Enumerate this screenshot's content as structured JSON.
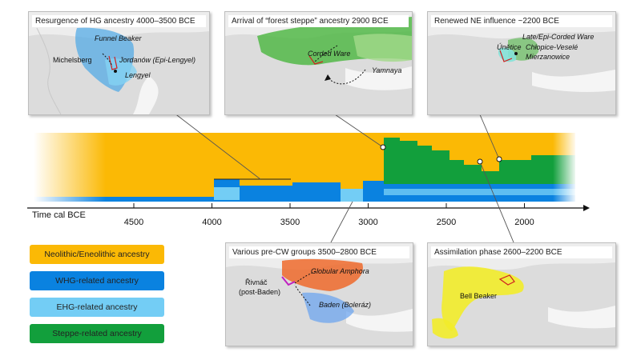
{
  "colors": {
    "neolithic": "#fbb905",
    "whg": "#0a82e0",
    "ehg": "#73cdf5",
    "steppe": "#129f3c"
  },
  "timeline": {
    "axis_label": "Time cal BCE",
    "ticks": [
      "4500",
      "4000",
      "3500",
      "3000",
      "2500",
      "2000"
    ]
  },
  "legend": [
    {
      "label": "Neolithic/Eneolithic ancestry",
      "color": "#fbb905"
    },
    {
      "label": "WHG-related ancestry",
      "color": "#0a82e0"
    },
    {
      "label": "EHG-related ancestry",
      "color": "#73cdf5"
    },
    {
      "label": "Steppe-related ancestry",
      "color": "#129f3c"
    }
  ],
  "panels": {
    "hg": {
      "title": "Resurgence of HG ancestry 4000–3500 BCE",
      "labels": [
        "Funnel Beaker",
        "Michelsberg",
        "Jordanów (Epi-Lengyel)",
        "Lengyel"
      ]
    },
    "steppe": {
      "title": "Arrival of “forest steppe” ancestry 2900 BCE",
      "labels": [
        "Corded Ware",
        "Yamnaya"
      ]
    },
    "ne": {
      "title": "Renewed NE influence ~2200 BCE",
      "labels": [
        "Late/Epi-Corded Ware",
        "Únětice",
        "Chłopice-Veselé",
        "Mierzanowice"
      ]
    },
    "precw": {
      "title": "Various pre-CW groups 3500–2800 BCE",
      "labels": [
        "Globular Amphora",
        "Řivnáč",
        "(post-Baden)",
        "Baden (Boleráz)"
      ]
    },
    "assim": {
      "title": "Assimilation phase 2600–2200 BCE",
      "labels": [
        "Bell Beaker"
      ]
    }
  }
}
